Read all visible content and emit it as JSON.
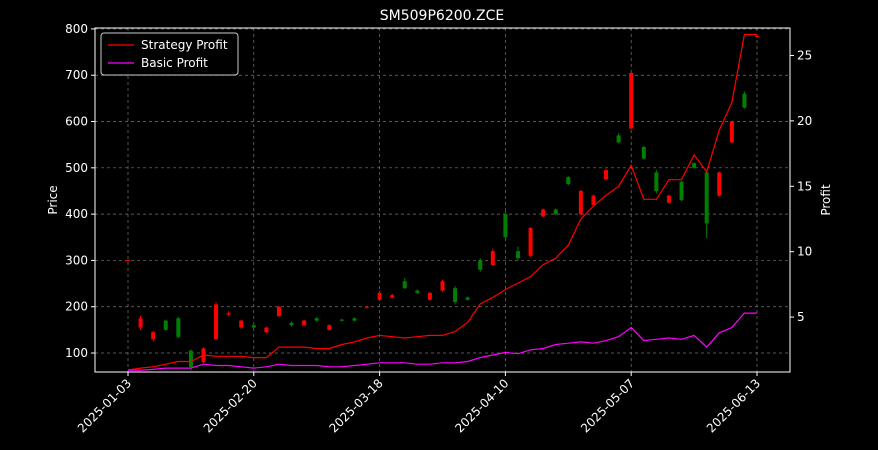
{
  "chart_data": {
    "type": "candlestick",
    "title": "SM509P6200.ZCE",
    "ylabel": "Price",
    "y2label": "Profit",
    "categories": [
      "2025-01-03",
      null,
      null,
      null,
      null,
      null,
      null,
      null,
      null,
      null,
      "2025-02-20",
      null,
      null,
      null,
      null,
      null,
      null,
      null,
      null,
      null,
      "2025-03-18",
      null,
      null,
      null,
      null,
      null,
      null,
      null,
      null,
      null,
      "2025-04-10",
      null,
      null,
      null,
      null,
      null,
      null,
      null,
      null,
      null,
      "2025-05-07",
      null,
      null,
      null,
      null,
      null,
      null,
      null,
      null,
      null,
      "2025-06-13"
    ],
    "candles": {
      "up_color": "#ff0000",
      "down_color": "#008000",
      "open": [
        300,
        155,
        130,
        170,
        175,
        105,
        80,
        130,
        183,
        155,
        160,
        145,
        180,
        165,
        160,
        175,
        150,
        172,
        175,
        198,
        215,
        220,
        255,
        235,
        215,
        235,
        240,
        220,
        300,
        290,
        400,
        320,
        310,
        395,
        410,
        480,
        400,
        420,
        475,
        570,
        585,
        545,
        490,
        425,
        470,
        510,
        490,
        440,
        555,
        660,
        783
      ],
      "high": [
        302,
        180,
        148,
        172,
        178,
        108,
        112,
        210,
        190,
        172,
        162,
        157,
        202,
        168,
        172,
        178,
        162,
        174,
        177,
        202,
        235,
        228,
        262,
        237,
        232,
        258,
        245,
        222,
        305,
        325,
        410,
        330,
        372,
        412,
        412,
        482,
        452,
        442,
        498,
        575,
        708,
        548,
        495,
        442,
        472,
        512,
        495,
        492,
        602,
        665,
        787
      ],
      "low": [
        298,
        150,
        125,
        148,
        132,
        62,
        78,
        128,
        180,
        152,
        154,
        143,
        178,
        158,
        158,
        168,
        148,
        168,
        168,
        196,
        212,
        218,
        238,
        228,
        213,
        232,
        205,
        213,
        275,
        288,
        345,
        300,
        308,
        393,
        398,
        462,
        398,
        418,
        473,
        553,
        583,
        518,
        445,
        423,
        428,
        498,
        348,
        438,
        553,
        628,
        781
      ],
      "close": [
        301,
        175,
        145,
        150,
        135,
        70,
        110,
        205,
        186,
        170,
        155,
        155,
        200,
        160,
        170,
        170,
        160,
        170,
        170,
        200,
        230,
        225,
        240,
        230,
        230,
        255,
        210,
        215,
        280,
        320,
        350,
        305,
        370,
        410,
        400,
        465,
        450,
        440,
        495,
        555,
        705,
        520,
        450,
        440,
        430,
        500,
        380,
        490,
        600,
        630,
        785
      ]
    },
    "series": [
      {
        "name": "Strategy Profit",
        "color": "#ff0000",
        "axis": "y2",
        "values": [
          0.95,
          1.1,
          1.2,
          1.4,
          1.6,
          1.6,
          2.1,
          2.0,
          2.0,
          2.0,
          1.9,
          1.9,
          2.7,
          2.7,
          2.7,
          2.6,
          2.6,
          2.9,
          3.1,
          3.4,
          3.6,
          3.5,
          3.4,
          3.5,
          3.6,
          3.6,
          3.9,
          4.6,
          6.0,
          6.5,
          7.1,
          7.6,
          8.1,
          9.0,
          9.5,
          10.5,
          12.5,
          13.5,
          14.3,
          15.0,
          16.6,
          14.0,
          14.0,
          15.5,
          15.5,
          17.4,
          16.1,
          19.3,
          21.4,
          26.6,
          26.6
        ]
      },
      {
        "name": "Basic Profit",
        "color": "#ff00ff",
        "axis": "y2",
        "values": [
          0.94,
          0.94,
          1.0,
          1.1,
          1.1,
          1.1,
          1.4,
          1.3,
          1.3,
          1.2,
          1.1,
          1.2,
          1.4,
          1.3,
          1.3,
          1.3,
          1.2,
          1.2,
          1.3,
          1.4,
          1.5,
          1.5,
          1.5,
          1.4,
          1.4,
          1.5,
          1.5,
          1.6,
          1.9,
          2.1,
          2.3,
          2.2,
          2.5,
          2.6,
          2.9,
          3.0,
          3.1,
          3.0,
          3.2,
          3.5,
          4.2,
          3.2,
          3.3,
          3.4,
          3.3,
          3.6,
          2.7,
          3.8,
          4.2,
          5.3,
          5.3
        ]
      }
    ],
    "ylim": [
      59,
      802
    ],
    "yticks": [
      100,
      200,
      300,
      400,
      500,
      600,
      700,
      800
    ],
    "y2lim": [
      0.8,
      27.1
    ],
    "y2ticks": [
      5,
      10,
      15,
      20,
      25
    ],
    "grid": true,
    "legend": "upper left"
  }
}
